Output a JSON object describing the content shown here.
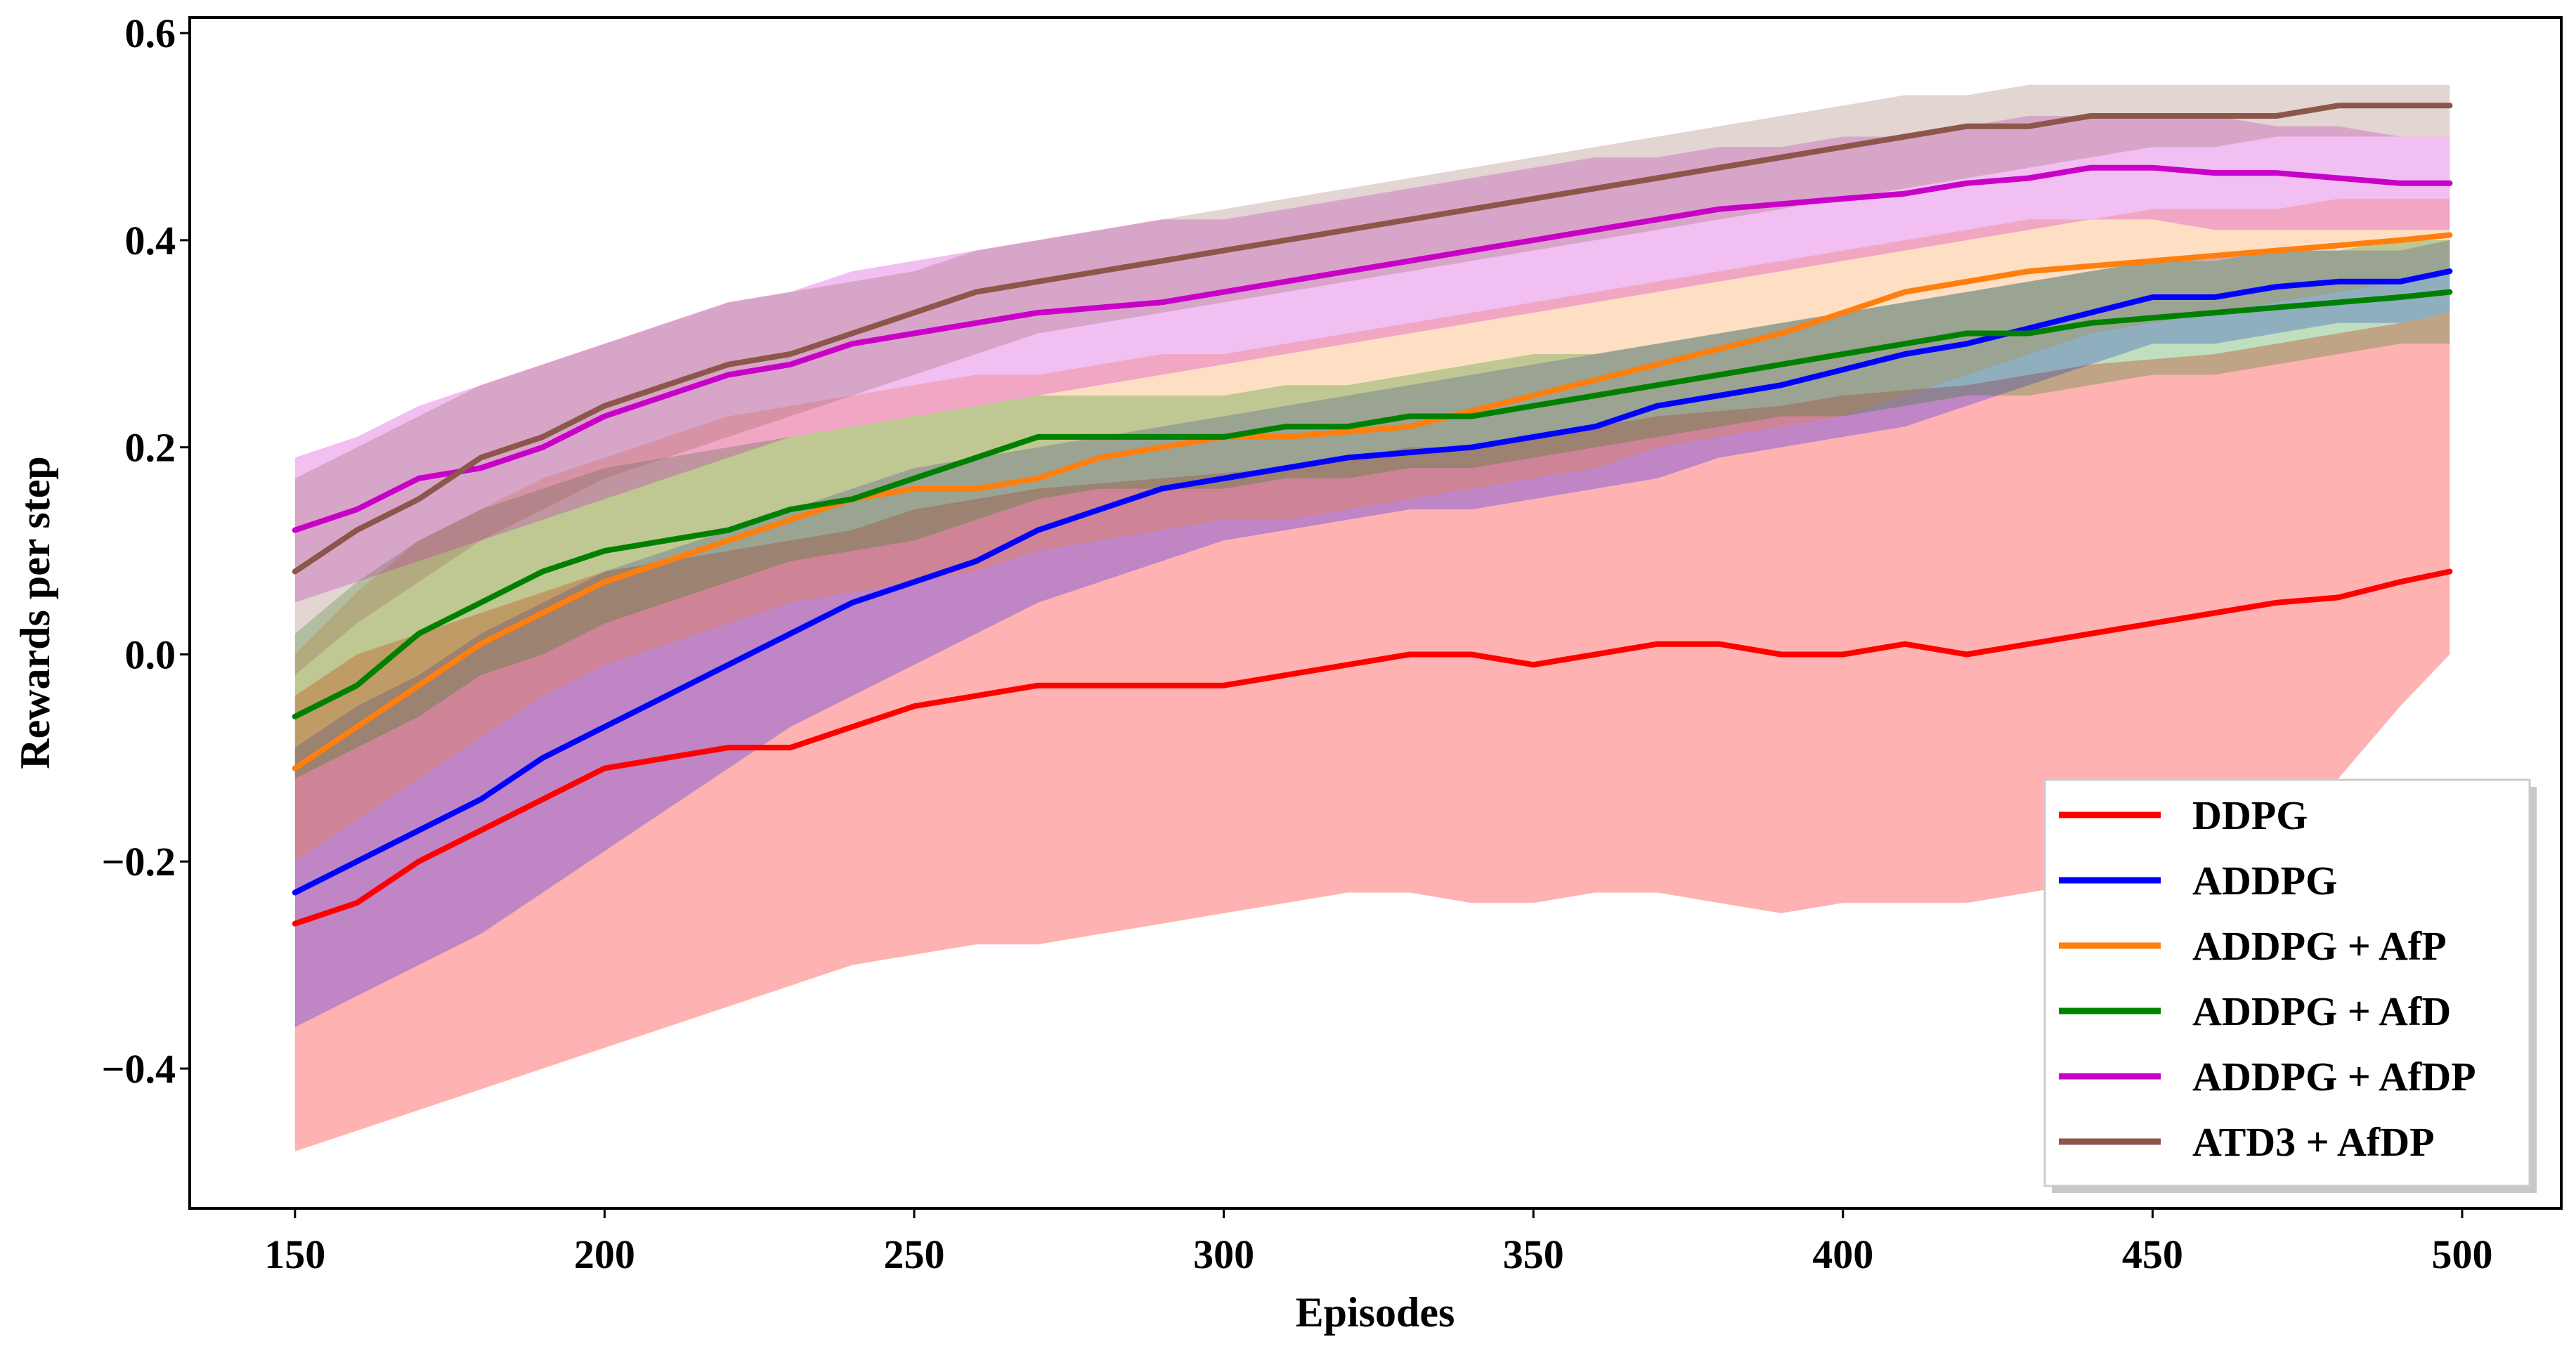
{
  "chart_data": {
    "type": "line",
    "title": "",
    "xlabel": "Episodes",
    "ylabel": "Rewards per step",
    "xlim": [
      133,
      516
    ],
    "ylim": [
      -0.535,
      0.615
    ],
    "xticks": [
      150,
      200,
      250,
      300,
      350,
      400,
      450,
      500
    ],
    "xtick_labels": [
      "150",
      "200",
      "250",
      "300",
      "350",
      "400",
      "450",
      "500"
    ],
    "yticks": [
      -0.4,
      -0.2,
      0.0,
      0.2,
      0.4,
      0.6
    ],
    "ytick_labels": [
      "−0.4",
      "−0.2",
      "0.0",
      "0.2",
      "0.4",
      "0.6"
    ],
    "grid": false,
    "legend_position": "lower-right",
    "x": [
      150,
      160,
      170,
      180,
      190,
      200,
      210,
      220,
      230,
      240,
      250,
      260,
      270,
      280,
      290,
      300,
      310,
      320,
      330,
      340,
      350,
      360,
      370,
      380,
      390,
      400,
      410,
      420,
      430,
      440,
      450,
      460,
      470,
      480,
      490,
      498
    ],
    "series": [
      {
        "name": "DDPG",
        "color": "#ff0000",
        "values": [
          -0.26,
          -0.24,
          -0.2,
          -0.17,
          -0.14,
          -0.11,
          -0.1,
          -0.09,
          -0.09,
          -0.07,
          -0.05,
          -0.04,
          -0.03,
          -0.03,
          -0.03,
          -0.03,
          -0.02,
          -0.01,
          0.0,
          0.0,
          -0.01,
          0.0,
          0.01,
          0.01,
          0.0,
          0.0,
          0.01,
          0.0,
          0.01,
          0.02,
          0.03,
          0.04,
          0.05,
          0.055,
          0.07,
          0.08
        ],
        "upper": [
          -0.04,
          0.0,
          0.02,
          0.04,
          0.06,
          0.08,
          0.09,
          0.1,
          0.11,
          0.12,
          0.14,
          0.15,
          0.16,
          0.165,
          0.17,
          0.175,
          0.18,
          0.19,
          0.2,
          0.2,
          0.21,
          0.22,
          0.23,
          0.235,
          0.24,
          0.25,
          0.255,
          0.26,
          0.27,
          0.28,
          0.285,
          0.29,
          0.3,
          0.31,
          0.32,
          0.33
        ],
        "lower": [
          -0.48,
          -0.46,
          -0.44,
          -0.42,
          -0.4,
          -0.38,
          -0.36,
          -0.34,
          -0.32,
          -0.3,
          -0.29,
          -0.28,
          -0.28,
          -0.27,
          -0.26,
          -0.25,
          -0.24,
          -0.23,
          -0.23,
          -0.24,
          -0.24,
          -0.23,
          -0.23,
          -0.24,
          -0.25,
          -0.24,
          -0.24,
          -0.24,
          -0.23,
          -0.22,
          -0.21,
          -0.2,
          -0.16,
          -0.12,
          -0.05,
          0.0
        ]
      },
      {
        "name": "ADDPG",
        "color": "#0000ff",
        "values": [
          -0.23,
          -0.2,
          -0.17,
          -0.14,
          -0.1,
          -0.07,
          -0.04,
          -0.01,
          0.02,
          0.05,
          0.07,
          0.09,
          0.12,
          0.14,
          0.16,
          0.17,
          0.18,
          0.19,
          0.195,
          0.2,
          0.21,
          0.22,
          0.24,
          0.25,
          0.26,
          0.275,
          0.29,
          0.3,
          0.315,
          0.33,
          0.345,
          0.345,
          0.355,
          0.36,
          0.36,
          0.37
        ],
        "upper": [
          -0.09,
          -0.05,
          -0.02,
          0.02,
          0.05,
          0.08,
          0.1,
          0.12,
          0.14,
          0.16,
          0.18,
          0.19,
          0.2,
          0.21,
          0.22,
          0.23,
          0.24,
          0.25,
          0.26,
          0.27,
          0.28,
          0.29,
          0.3,
          0.31,
          0.32,
          0.33,
          0.34,
          0.35,
          0.36,
          0.37,
          0.38,
          0.385,
          0.39,
          0.39,
          0.39,
          0.4
        ],
        "lower": [
          -0.36,
          -0.33,
          -0.3,
          -0.27,
          -0.23,
          -0.19,
          -0.15,
          -0.11,
          -0.07,
          -0.04,
          -0.01,
          0.02,
          0.05,
          0.07,
          0.09,
          0.11,
          0.12,
          0.13,
          0.14,
          0.14,
          0.15,
          0.16,
          0.17,
          0.19,
          0.2,
          0.21,
          0.22,
          0.24,
          0.26,
          0.28,
          0.3,
          0.3,
          0.31,
          0.32,
          0.32,
          0.33
        ]
      },
      {
        "name": "ADDPG + AfP",
        "color": "#ff7f0e",
        "values": [
          -0.11,
          -0.07,
          -0.03,
          0.01,
          0.04,
          0.07,
          0.09,
          0.11,
          0.13,
          0.15,
          0.16,
          0.16,
          0.17,
          0.19,
          0.2,
          0.21,
          0.21,
          0.215,
          0.22,
          0.235,
          0.25,
          0.265,
          0.28,
          0.295,
          0.31,
          0.33,
          0.35,
          0.36,
          0.37,
          0.375,
          0.38,
          0.385,
          0.39,
          0.395,
          0.4,
          0.405
        ],
        "upper": [
          0.0,
          0.06,
          0.11,
          0.14,
          0.17,
          0.19,
          0.21,
          0.23,
          0.24,
          0.25,
          0.26,
          0.27,
          0.27,
          0.28,
          0.29,
          0.29,
          0.3,
          0.31,
          0.32,
          0.33,
          0.34,
          0.35,
          0.36,
          0.37,
          0.38,
          0.39,
          0.4,
          0.41,
          0.42,
          0.42,
          0.43,
          0.43,
          0.43,
          0.44,
          0.44,
          0.44
        ],
        "lower": [
          -0.2,
          -0.16,
          -0.12,
          -0.08,
          -0.04,
          -0.01,
          0.01,
          0.03,
          0.05,
          0.06,
          0.07,
          0.08,
          0.1,
          0.11,
          0.12,
          0.13,
          0.13,
          0.14,
          0.15,
          0.16,
          0.17,
          0.18,
          0.2,
          0.21,
          0.22,
          0.23,
          0.25,
          0.27,
          0.29,
          0.31,
          0.32,
          0.33,
          0.34,
          0.35,
          0.36,
          0.37
        ]
      },
      {
        "name": "ADDPG + AfD",
        "color": "#008000",
        "values": [
          -0.06,
          -0.03,
          0.02,
          0.05,
          0.08,
          0.1,
          0.11,
          0.12,
          0.14,
          0.15,
          0.17,
          0.19,
          0.21,
          0.21,
          0.21,
          0.21,
          0.22,
          0.22,
          0.23,
          0.23,
          0.24,
          0.25,
          0.26,
          0.27,
          0.28,
          0.29,
          0.3,
          0.31,
          0.31,
          0.32,
          0.325,
          0.33,
          0.335,
          0.34,
          0.345,
          0.35
        ],
        "upper": [
          0.02,
          0.07,
          0.11,
          0.14,
          0.16,
          0.18,
          0.19,
          0.2,
          0.21,
          0.22,
          0.23,
          0.24,
          0.25,
          0.25,
          0.25,
          0.25,
          0.26,
          0.26,
          0.27,
          0.28,
          0.29,
          0.29,
          0.3,
          0.31,
          0.32,
          0.33,
          0.34,
          0.35,
          0.36,
          0.37,
          0.38,
          0.38,
          0.39,
          0.39,
          0.4,
          0.4
        ],
        "lower": [
          -0.12,
          -0.09,
          -0.06,
          -0.02,
          0.0,
          0.03,
          0.05,
          0.07,
          0.09,
          0.1,
          0.11,
          0.13,
          0.15,
          0.16,
          0.16,
          0.16,
          0.17,
          0.17,
          0.18,
          0.18,
          0.19,
          0.2,
          0.21,
          0.22,
          0.23,
          0.23,
          0.24,
          0.25,
          0.25,
          0.26,
          0.27,
          0.27,
          0.28,
          0.29,
          0.3,
          0.3
        ]
      },
      {
        "name": "ADDPG + AfDP",
        "color": "#c800c8",
        "values": [
          0.12,
          0.14,
          0.17,
          0.18,
          0.2,
          0.23,
          0.25,
          0.27,
          0.28,
          0.3,
          0.31,
          0.32,
          0.33,
          0.335,
          0.34,
          0.35,
          0.36,
          0.37,
          0.38,
          0.39,
          0.4,
          0.41,
          0.42,
          0.43,
          0.435,
          0.44,
          0.445,
          0.455,
          0.46,
          0.47,
          0.47,
          0.465,
          0.465,
          0.46,
          0.455,
          0.455
        ],
        "upper": [
          0.19,
          0.21,
          0.24,
          0.26,
          0.28,
          0.3,
          0.32,
          0.34,
          0.35,
          0.37,
          0.38,
          0.39,
          0.4,
          0.41,
          0.42,
          0.42,
          0.43,
          0.44,
          0.45,
          0.46,
          0.47,
          0.48,
          0.48,
          0.49,
          0.49,
          0.5,
          0.5,
          0.51,
          0.52,
          0.52,
          0.52,
          0.52,
          0.51,
          0.51,
          0.5,
          0.5
        ],
        "lower": [
          0.05,
          0.07,
          0.09,
          0.11,
          0.13,
          0.15,
          0.17,
          0.19,
          0.21,
          0.22,
          0.23,
          0.24,
          0.25,
          0.26,
          0.27,
          0.28,
          0.29,
          0.3,
          0.31,
          0.32,
          0.33,
          0.34,
          0.35,
          0.36,
          0.37,
          0.38,
          0.39,
          0.4,
          0.41,
          0.42,
          0.42,
          0.41,
          0.41,
          0.41,
          0.41,
          0.41
        ]
      },
      {
        "name": "ATD3 + AfDP",
        "color": "#8c564b",
        "values": [
          0.08,
          0.12,
          0.15,
          0.19,
          0.21,
          0.24,
          0.26,
          0.28,
          0.29,
          0.31,
          0.33,
          0.35,
          0.36,
          0.37,
          0.38,
          0.39,
          0.4,
          0.41,
          0.42,
          0.43,
          0.44,
          0.45,
          0.46,
          0.47,
          0.48,
          0.49,
          0.5,
          0.51,
          0.51,
          0.52,
          0.52,
          0.52,
          0.52,
          0.53,
          0.53,
          0.53
        ],
        "upper": [
          0.17,
          0.2,
          0.23,
          0.26,
          0.28,
          0.3,
          0.32,
          0.34,
          0.35,
          0.36,
          0.37,
          0.39,
          0.4,
          0.41,
          0.42,
          0.43,
          0.44,
          0.45,
          0.46,
          0.47,
          0.48,
          0.49,
          0.5,
          0.51,
          0.52,
          0.53,
          0.54,
          0.54,
          0.55,
          0.55,
          0.55,
          0.55,
          0.55,
          0.55,
          0.55,
          0.55
        ],
        "lower": [
          -0.02,
          0.03,
          0.07,
          0.11,
          0.14,
          0.17,
          0.19,
          0.21,
          0.23,
          0.25,
          0.27,
          0.29,
          0.31,
          0.32,
          0.33,
          0.34,
          0.35,
          0.36,
          0.37,
          0.38,
          0.39,
          0.4,
          0.41,
          0.42,
          0.43,
          0.44,
          0.45,
          0.46,
          0.47,
          0.48,
          0.49,
          0.49,
          0.5,
          0.5,
          0.5,
          0.5
        ]
      }
    ]
  }
}
